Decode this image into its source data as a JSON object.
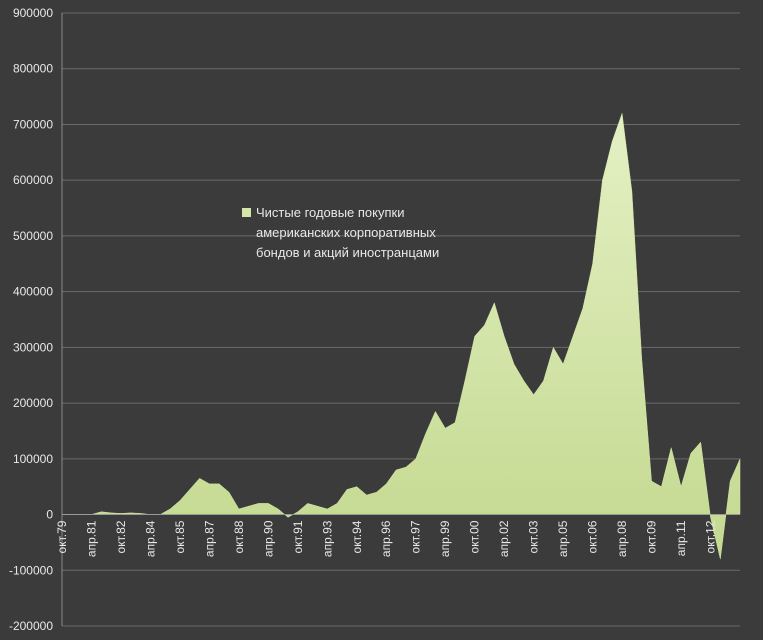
{
  "chart_data": {
    "type": "area",
    "categories": [
      "окт.79",
      null,
      null,
      "апр.81",
      null,
      null,
      "окт.82",
      null,
      null,
      "апр.84",
      null,
      null,
      "окт.85",
      null,
      null,
      "апр.87",
      null,
      null,
      "окт.88",
      null,
      null,
      "апр.90",
      null,
      null,
      "окт.91",
      null,
      null,
      "апр.93",
      null,
      null,
      "окт.94",
      null,
      null,
      "апр.96",
      null,
      null,
      "окт.97",
      null,
      null,
      "апр.99",
      null,
      null,
      "окт.00",
      null,
      null,
      "апр.02",
      null,
      null,
      "окт.03",
      null,
      null,
      "апр.05",
      null,
      null,
      "окт.06",
      null,
      null,
      "апр.08",
      null,
      null,
      "окт.09",
      null,
      null,
      "апр.11",
      null,
      null,
      "окт.12",
      null,
      null,
      null
    ],
    "series": [
      {
        "name": "Чистые годовые покупки американских корпоративных бондов и акций иностранцами",
        "color": "#d3e6a6",
        "values": [
          0,
          0,
          0,
          0,
          5000,
          3000,
          2000,
          3000,
          2000,
          0,
          0,
          10000,
          25000,
          45000,
          65000,
          55000,
          55000,
          40000,
          10000,
          15000,
          20000,
          20000,
          10000,
          -5000,
          5000,
          20000,
          15000,
          10000,
          20000,
          45000,
          50000,
          35000,
          40000,
          55000,
          80000,
          85000,
          100000,
          145000,
          185000,
          155000,
          165000,
          240000,
          320000,
          340000,
          380000,
          320000,
          270000,
          240000,
          215000,
          240000,
          300000,
          270000,
          320000,
          370000,
          450000,
          600000,
          670000,
          720000,
          580000,
          280000,
          60000,
          50000,
          120000,
          50000,
          110000,
          130000,
          -5000,
          -80000,
          60000,
          100000
        ]
      }
    ],
    "ylim": [
      -200000,
      900000
    ],
    "yticks": [
      -200000,
      -100000,
      0,
      100000,
      200000,
      300000,
      400000,
      500000,
      600000,
      700000,
      800000,
      900000
    ],
    "grid": true
  }
}
